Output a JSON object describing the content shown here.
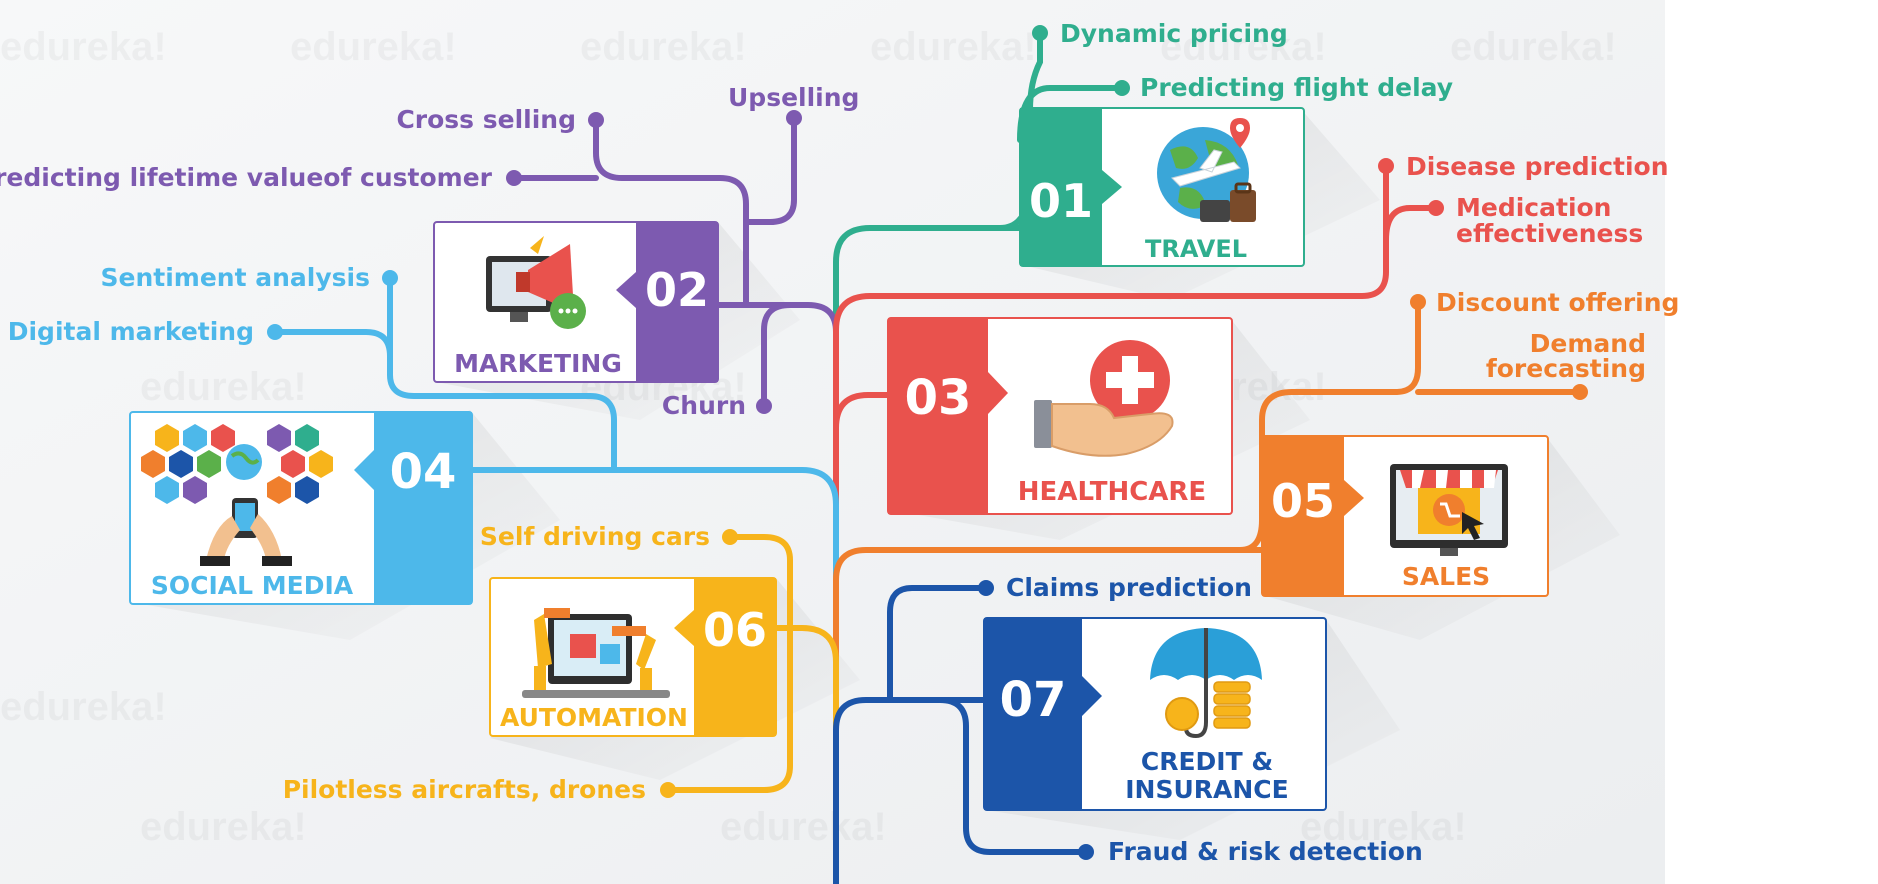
{
  "colors": {
    "travel": "#2fae8e",
    "marketing": "#7d5ab0",
    "healthcare": "#e9524d",
    "social_media": "#4db8ea",
    "sales": "#f07f2d",
    "automation": "#f7b41b",
    "insurance": "#1c55a9"
  },
  "watermark": "edureka!",
  "sectors": [
    {
      "id": "travel",
      "number": "01",
      "title": "TRAVEL",
      "icon": "globe-airplane-icon",
      "branches": [
        "Dynamic pricing",
        "Predicting flight delay"
      ]
    },
    {
      "id": "marketing",
      "number": "02",
      "title": "MARKETING",
      "icon": "megaphone-icon",
      "branches": [
        "Cross selling",
        "Upselling",
        "Predicting lifetime valueof customer",
        "Churn"
      ]
    },
    {
      "id": "healthcare",
      "number": "03",
      "title": "HEALTHCARE",
      "icon": "medical-hand-icon",
      "branches": [
        "Disease prediction",
        "Medication",
        "effectiveness"
      ]
    },
    {
      "id": "social_media",
      "number": "04",
      "title": "SOCIAL MEDIA",
      "icon": "people-network-icon",
      "branches": [
        "Sentiment analysis",
        "Digital marketing"
      ]
    },
    {
      "id": "sales",
      "number": "05",
      "title": "SALES",
      "icon": "online-store-icon",
      "branches": [
        "Discount offering",
        "Demand",
        "forecasting"
      ]
    },
    {
      "id": "automation",
      "number": "06",
      "title": "AUTOMATION",
      "icon": "robotic-arm-icon",
      "branches": [
        "Self driving cars",
        "Pilotless aircrafts, drones"
      ]
    },
    {
      "id": "insurance",
      "number": "07",
      "title_lines": [
        "CREDIT &",
        "INSURANCE"
      ],
      "icon": "umbrella-coins-icon",
      "branches": [
        "Claims prediction",
        "Fraud & risk detection"
      ]
    }
  ]
}
